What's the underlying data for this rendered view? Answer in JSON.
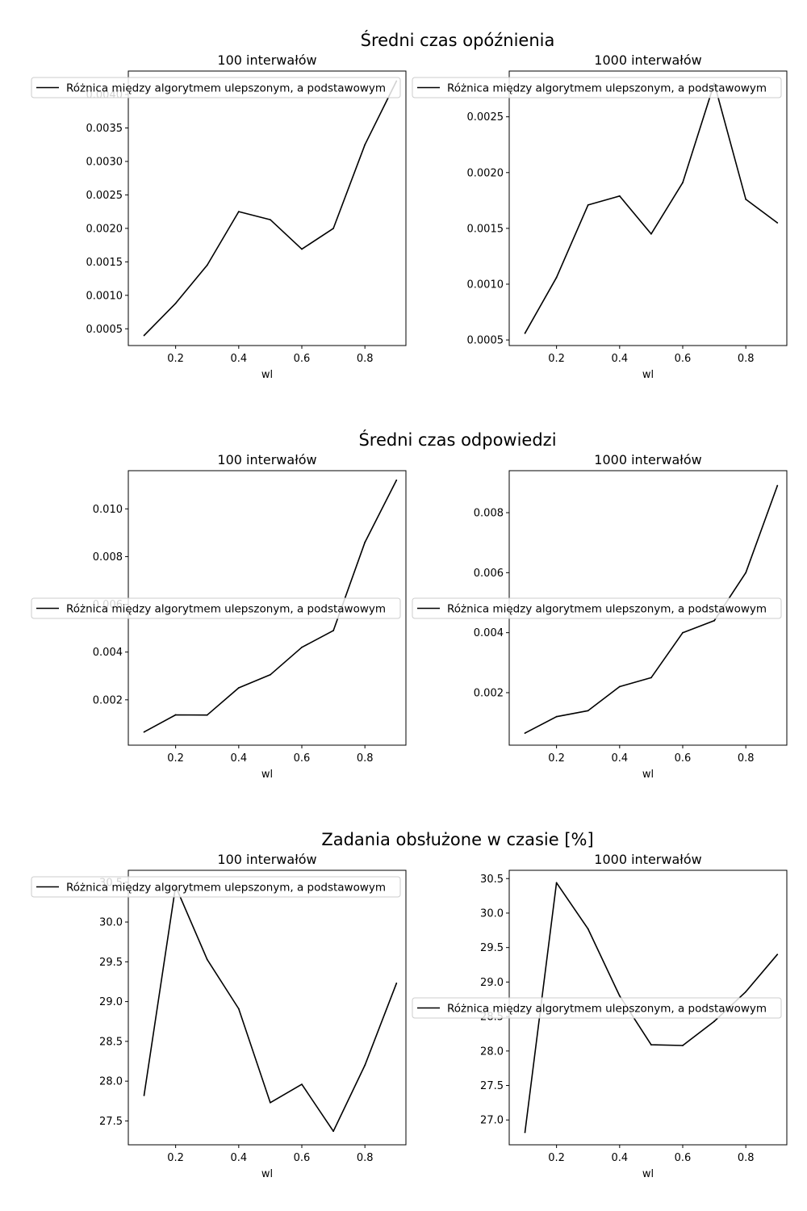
{
  "figure": {
    "background": "#ffffff",
    "line_color": "#000000"
  },
  "chart_data": [
    {
      "type": "line",
      "group_title": "Średni czas opóźnienia",
      "title": "100 interwałów",
      "xlabel": "wl",
      "ylabel": "",
      "xlim": [
        0.05,
        0.93
      ],
      "ylim": [
        0.00025,
        0.00435
      ],
      "xticks": [
        "0.2",
        "0.4",
        "0.6",
        "0.8"
      ],
      "yticks": [
        "0.0005",
        "0.0010",
        "0.0015",
        "0.0020",
        "0.0025",
        "0.0030",
        "0.0035",
        "0.0040"
      ],
      "legend": {
        "position": "upper-left"
      },
      "series": [
        {
          "name": "Różnica między algorytmem ulepszonym, a podstawowym",
          "x": [
            0.1,
            0.2,
            0.3,
            0.4,
            0.5,
            0.6,
            0.7,
            0.8,
            0.9
          ],
          "y": [
            0.0004,
            0.00088,
            0.00145,
            0.00225,
            0.00213,
            0.00169,
            0.002,
            0.00325,
            0.0042
          ]
        }
      ]
    },
    {
      "type": "line",
      "group_title": "",
      "title": "1000 interwałów",
      "xlabel": "wl",
      "ylabel": "",
      "xlim": [
        0.05,
        0.93
      ],
      "ylim": [
        0.00045,
        0.00291
      ],
      "xticks": [
        "0.2",
        "0.4",
        "0.6",
        "0.8"
      ],
      "yticks": [
        "0.0005",
        "0.0010",
        "0.0015",
        "0.0020",
        "0.0025"
      ],
      "legend": {
        "position": "upper-left"
      },
      "series": [
        {
          "name": "Różnica między algorytmem ulepszonym, a podstawowym",
          "x": [
            0.1,
            0.2,
            0.3,
            0.4,
            0.5,
            0.6,
            0.7,
            0.8,
            0.9
          ],
          "y": [
            0.00056,
            0.00106,
            0.00171,
            0.00179,
            0.00145,
            0.00191,
            0.0028,
            0.00176,
            0.00155
          ]
        }
      ]
    },
    {
      "type": "line",
      "group_title": "Średni czas odpowiedzi",
      "title": "100 interwałów",
      "xlabel": "wl",
      "ylabel": "",
      "xlim": [
        0.05,
        0.93
      ],
      "ylim": [
        0.0001,
        0.0116
      ],
      "xticks": [
        "0.2",
        "0.4",
        "0.6",
        "0.8"
      ],
      "yticks": [
        "0.002",
        "0.004",
        "0.006",
        "0.008",
        "0.010"
      ],
      "legend": {
        "position": "center-left"
      },
      "series": [
        {
          "name": "Różnica między algorytmem ulepszonym, a podstawowym",
          "x": [
            0.1,
            0.2,
            0.3,
            0.4,
            0.5,
            0.6,
            0.7,
            0.8,
            0.9
          ],
          "y": [
            0.00065,
            0.00137,
            0.00136,
            0.0025,
            0.00305,
            0.0042,
            0.0049,
            0.0086,
            0.0112
          ]
        }
      ]
    },
    {
      "type": "line",
      "group_title": "",
      "title": "1000 interwałów",
      "xlabel": "wl",
      "ylabel": "",
      "xlim": [
        0.05,
        0.93
      ],
      "ylim": [
        0.00025,
        0.0094
      ],
      "xticks": [
        "0.2",
        "0.4",
        "0.6",
        "0.8"
      ],
      "yticks": [
        "0.002",
        "0.004",
        "0.006",
        "0.008"
      ],
      "legend": {
        "position": "center-left"
      },
      "series": [
        {
          "name": "Różnica między algorytmem ulepszonym, a podstawowym",
          "x": [
            0.1,
            0.2,
            0.3,
            0.4,
            0.5,
            0.6,
            0.7,
            0.8,
            0.9
          ],
          "y": [
            0.00065,
            0.0012,
            0.0014,
            0.0022,
            0.0025,
            0.004,
            0.0044,
            0.006,
            0.0089
          ]
        }
      ]
    },
    {
      "type": "line",
      "group_title": "Zadania obsłużone w czasie [%]",
      "title": "100 interwałów",
      "xlabel": "wl",
      "ylabel": "",
      "xlim": [
        0.05,
        0.93
      ],
      "ylim": [
        27.2,
        30.65
      ],
      "xticks": [
        "0.2",
        "0.4",
        "0.6",
        "0.8"
      ],
      "yticks": [
        "27.5",
        "28.0",
        "28.5",
        "29.0",
        "29.5",
        "30.0",
        "30.5"
      ],
      "legend": {
        "position": "upper-left"
      },
      "series": [
        {
          "name": "Różnica między algorytmem ulepszonym, a podstawowym",
          "x": [
            0.1,
            0.2,
            0.3,
            0.4,
            0.5,
            0.6,
            0.7,
            0.8,
            0.9
          ],
          "y": [
            27.82,
            30.45,
            29.53,
            28.91,
            27.73,
            27.96,
            27.37,
            28.2,
            29.23
          ]
        }
      ]
    },
    {
      "type": "line",
      "group_title": "",
      "title": "1000 interwałów",
      "xlabel": "wl",
      "ylabel": "",
      "xlim": [
        0.05,
        0.93
      ],
      "ylim": [
        26.64,
        30.62
      ],
      "xticks": [
        "0.2",
        "0.4",
        "0.6",
        "0.8"
      ],
      "yticks": [
        "27.0",
        "27.5",
        "28.0",
        "28.5",
        "29.0",
        "29.5",
        "30.0",
        "30.5"
      ],
      "legend": {
        "position": "center-left"
      },
      "series": [
        {
          "name": "Różnica między algorytmem ulepszonym, a podstawowym",
          "x": [
            0.1,
            0.2,
            0.3,
            0.4,
            0.5,
            0.6,
            0.7,
            0.8,
            0.9
          ],
          "y": [
            26.82,
            30.44,
            29.77,
            28.8,
            28.09,
            28.08,
            28.43,
            28.86,
            29.4
          ]
        }
      ]
    }
  ]
}
